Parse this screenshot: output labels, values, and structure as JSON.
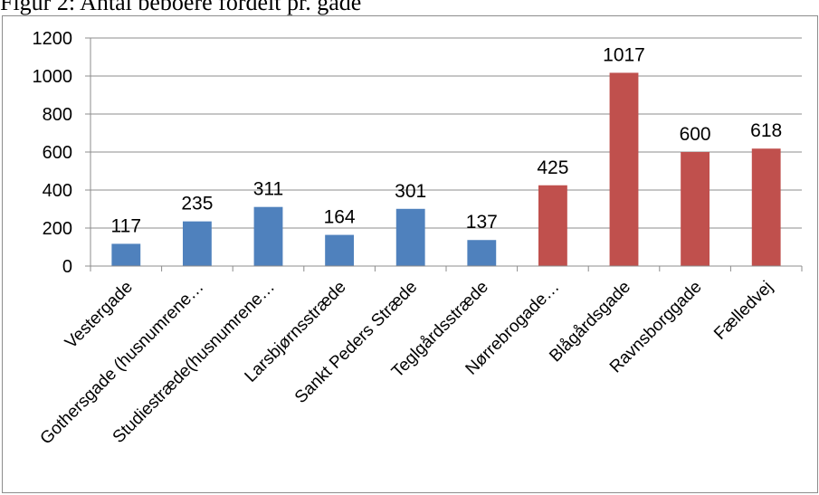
{
  "caption": {
    "text": "Figur 2: Antal beboere fordelt pr. gade"
  },
  "colors": {
    "series_a": "#4f81bd",
    "series_b": "#c0504d",
    "gridline": "#8c8c8c"
  },
  "chart_data": {
    "type": "bar",
    "title": "",
    "xlabel": "",
    "ylabel": "",
    "ylim": [
      0,
      1200
    ],
    "yticks": [
      0,
      200,
      400,
      600,
      800,
      1000,
      1200
    ],
    "grid": true,
    "legend": "none",
    "categories": [
      "Vestergade",
      "Gothersgade (husnumrene…",
      "Studiestræde(husnumrene…",
      "Larsbjørnsstræde",
      "Sankt Peders Stræde",
      "Teglgårdsstræde",
      "Nørrebrogade…",
      "Blågårdsgade",
      "Ravnsborggade",
      "Fælledvej"
    ],
    "values": [
      117,
      235,
      311,
      164,
      301,
      137,
      425,
      1017,
      600,
      618
    ],
    "bar_colors": [
      "#4f81bd",
      "#4f81bd",
      "#4f81bd",
      "#4f81bd",
      "#4f81bd",
      "#4f81bd",
      "#c0504d",
      "#c0504d",
      "#c0504d",
      "#c0504d"
    ],
    "data_labels": [
      "117",
      "235",
      "311",
      "164",
      "301",
      "137",
      "425",
      "1017",
      "600",
      "618"
    ]
  }
}
